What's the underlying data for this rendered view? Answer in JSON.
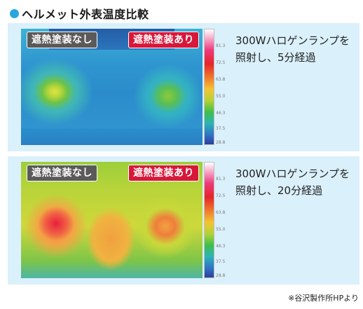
{
  "title": "ヘルメット外表温度比較",
  "panels": [
    {
      "label_without": "遮熱塗装なし",
      "label_with": "遮熱塗装あり",
      "desc_line1": "300Wハロゲンランプを",
      "desc_line2": "照射し、5分経過",
      "scale_ticks": [
        "81.3",
        "72.5",
        "63.8",
        "55.0",
        "46.3",
        "37.5",
        "28.8"
      ]
    },
    {
      "label_without": "遮熱塗装なし",
      "label_with": "遮熱塗装あり",
      "desc_line1": "300Wハロゲンランプを",
      "desc_line2": "照射し、20分経過",
      "scale_ticks": [
        "81.3",
        "72.5",
        "63.8",
        "55.0",
        "46.3",
        "37.5",
        "28.8"
      ]
    }
  ],
  "credit": "※谷沢製作所HPより",
  "colors": {
    "accent_dot": "#29a7dd",
    "panel_bg": "#daf0fb",
    "label_without_bg": "#5a5a5a",
    "label_with_bg": "#d7183a"
  }
}
